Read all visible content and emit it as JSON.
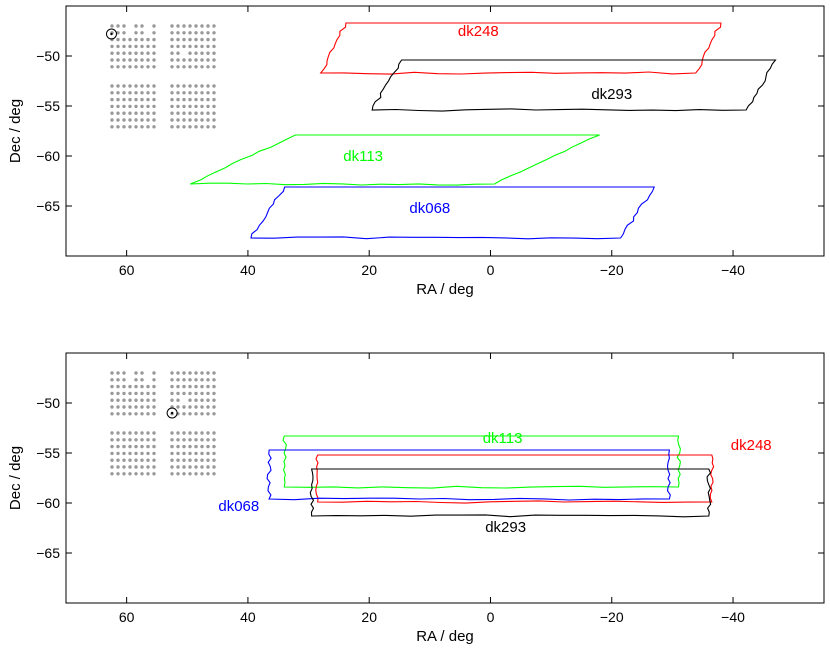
{
  "chart_data": [
    {
      "type": "scatter",
      "xlabel": "RA / deg",
      "ylabel": "Dec / deg",
      "xlim": [
        70,
        -55
      ],
      "ylim": [
        -70,
        -45
      ],
      "xticks": [
        60,
        40,
        20,
        0,
        -20,
        -40
      ],
      "yticks": [
        -50,
        -55,
        -60,
        -65
      ],
      "xtick_labels": [
        "60",
        "40",
        "20",
        "0",
        "−20",
        "−40"
      ],
      "ytick_labels": [
        "−50",
        "−55",
        "−60",
        "−65"
      ],
      "grid": false,
      "marker_circle": {
        "ra": 62.5,
        "dec": -47.8
      },
      "patches": [
        {
          "name": "dk248",
          "color": "#ff0000",
          "ra_min": -38,
          "ra_max": 28,
          "dec_min": -51.7,
          "dec_max": -46.7,
          "skew": 0.6,
          "label_ra": 2,
          "label_dec": -48
        },
        {
          "name": "dk293",
          "color": "#000000",
          "ra_min": -47,
          "ra_max": 19.5,
          "dec_min": -55.4,
          "dec_max": -50.4,
          "skew": 0.7,
          "label_ra": -20,
          "label_dec": -54.3
        },
        {
          "name": "dk113",
          "color": "#00ff00",
          "ra_min": -18,
          "ra_max": 49.5,
          "dec_min": -62.8,
          "dec_max": -57.9,
          "skew": 2.5,
          "label_ra": 21,
          "label_dec": -60.5
        },
        {
          "name": "dk068",
          "color": "#0000ff",
          "ra_min": -27,
          "ra_max": 39.5,
          "dec_min": -68.2,
          "dec_max": -63.1,
          "skew": 0.8,
          "label_ra": 10,
          "label_dec": -65.7
        }
      ]
    },
    {
      "type": "scatter",
      "xlabel": "RA / deg",
      "ylabel": "Dec / deg",
      "xlim": [
        70,
        -55
      ],
      "ylim": [
        -70,
        -45
      ],
      "xticks": [
        60,
        40,
        20,
        0,
        -20,
        -40
      ],
      "yticks": [
        -50,
        -55,
        -60,
        -65
      ],
      "xtick_labels": [
        "60",
        "40",
        "20",
        "0",
        "−20",
        "−40"
      ],
      "ytick_labels": [
        "−50",
        "−55",
        "−60",
        "−65"
      ],
      "grid": false,
      "marker_circle": {
        "ra": 52.5,
        "dec": -51.0
      },
      "patches": [
        {
          "name": "dk113",
          "color": "#00ff00",
          "ra_min": -31,
          "ra_max": 34,
          "dec_min": -58.4,
          "dec_max": -53.3,
          "skew": 0,
          "label_ra": -2,
          "label_dec": -54.0
        },
        {
          "name": "dk248",
          "color": "#ff0000",
          "ra_min": -36.5,
          "ra_max": 28.5,
          "dec_min": -59.9,
          "dec_max": -55.2,
          "skew": 0,
          "label_ra": -43,
          "label_dec": -54.7
        },
        {
          "name": "dk068",
          "color": "#0000ff",
          "ra_min": -29.5,
          "ra_max": 36.5,
          "dec_min": -59.6,
          "dec_max": -54.7,
          "skew": 0,
          "label_ra": 41.5,
          "label_dec": -60.8
        },
        {
          "name": "dk293",
          "color": "#000000",
          "ra_min": -36,
          "ra_max": 29.5,
          "dec_min": -61.3,
          "dec_max": -56.6,
          "skew": 0,
          "label_ra": -2.5,
          "label_dec": -62.9
        }
      ]
    }
  ]
}
